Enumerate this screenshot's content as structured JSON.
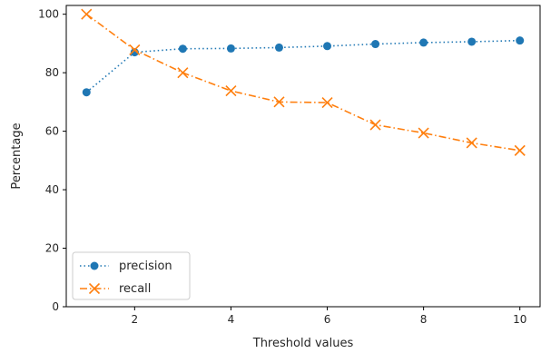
{
  "chart_data": {
    "type": "line",
    "title": "",
    "xlabel": "Threshold values",
    "ylabel": "Percentage",
    "xlim": [
      0.58,
      10.42
    ],
    "ylim": [
      0,
      103
    ],
    "xticks": [
      2,
      4,
      6,
      8,
      10
    ],
    "yticks": [
      0,
      20,
      40,
      60,
      80,
      100
    ],
    "grid": false,
    "legend_position": "lower-left",
    "x": [
      1,
      2,
      3,
      4,
      5,
      6,
      7,
      8,
      9,
      10
    ],
    "series": [
      {
        "name": "precision",
        "color": "#1f77b4",
        "linestyle": "dotted",
        "marker": "circle",
        "values": [
          73.3,
          87.0,
          88.2,
          88.3,
          88.6,
          89.1,
          89.8,
          90.3,
          90.6,
          91.0
        ]
      },
      {
        "name": "recall",
        "color": "#ff7f0e",
        "linestyle": "dashdot",
        "marker": "x",
        "values": [
          100.0,
          87.8,
          80.0,
          73.8,
          70.0,
          69.8,
          62.2,
          59.4,
          56.0,
          53.4
        ]
      }
    ]
  }
}
